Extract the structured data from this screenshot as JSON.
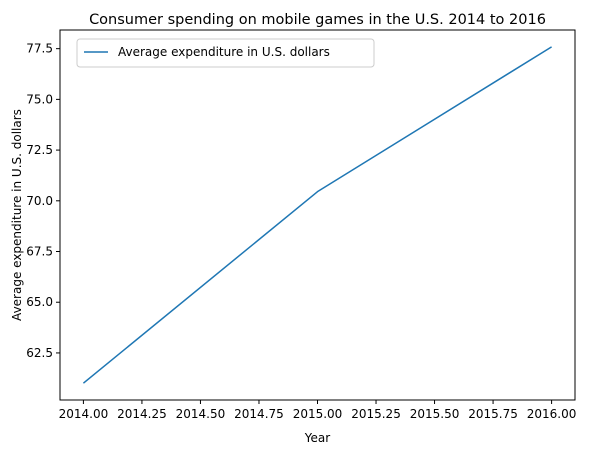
{
  "chart_data": {
    "type": "line",
    "title": "Consumer spending on mobile games in the U.S. 2014 to 2016",
    "xlabel": "Year",
    "ylabel": "Average expenditure in U.S. dollars",
    "xlim": [
      2013.9,
      2016.1
    ],
    "ylim": [
      60.18,
      78.42
    ],
    "x_ticks": [
      2014.0,
      2014.25,
      2014.5,
      2014.75,
      2015.0,
      2015.25,
      2015.5,
      2015.75,
      2016.0
    ],
    "x_tick_labels": [
      "2014.00",
      "2014.25",
      "2014.50",
      "2014.75",
      "2015.00",
      "2015.25",
      "2015.50",
      "2015.75",
      "2016.00"
    ],
    "y_ticks": [
      62.5,
      65.0,
      67.5,
      70.0,
      72.5,
      75.0,
      77.5
    ],
    "y_tick_labels": [
      "62.5",
      "65.0",
      "67.5",
      "70.0",
      "72.5",
      "75.0",
      "77.5"
    ],
    "x": [
      2014,
      2015,
      2016
    ],
    "series": [
      {
        "name": "Average expenditure in U.S. dollars",
        "values": [
          61.01,
          70.45,
          77.59
        ],
        "color": "#1f77b4"
      }
    ],
    "grid": false,
    "legend_position": "top-left"
  }
}
